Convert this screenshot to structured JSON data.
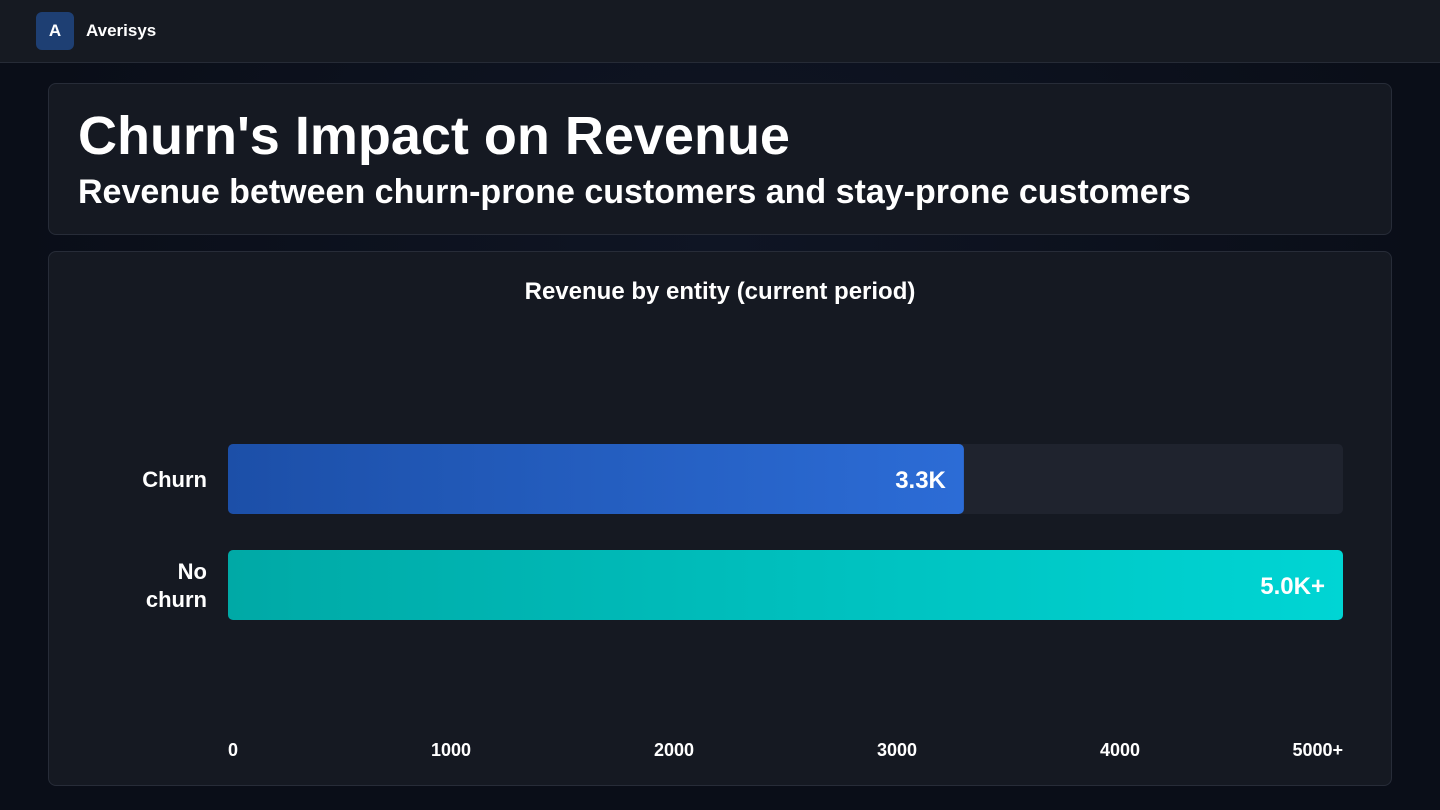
{
  "app": {
    "logo_letter": "A",
    "name": "Averisys"
  },
  "header": {
    "title": "Churn's Impact on Revenue",
    "subtitle": "Revenue between churn-prone customers and stay-prone customers"
  },
  "colors": {
    "churn_start": "#1c4fa8",
    "churn_end": "#2c6cd6",
    "nochurn_start": "#00a9a6",
    "nochurn_end": "#00d5d4",
    "track": "#1f232e"
  },
  "chart_data": {
    "type": "bar",
    "orientation": "horizontal",
    "title": "Revenue by entity (current period)",
    "categories": [
      {
        "lines": [
          "Churn"
        ]
      },
      {
        "lines": [
          "No",
          "churn"
        ]
      }
    ],
    "values": [
      3300,
      5000
    ],
    "value_labels": [
      "3.3K",
      "5.0K+"
    ],
    "xlim": [
      0,
      5000
    ],
    "ticks": [
      0,
      1000,
      2000,
      3000,
      4000,
      5000
    ],
    "tick_labels": [
      "0",
      "1000",
      "2000",
      "3000",
      "4000",
      "5000+"
    ],
    "grid": false,
    "legend": "none"
  }
}
